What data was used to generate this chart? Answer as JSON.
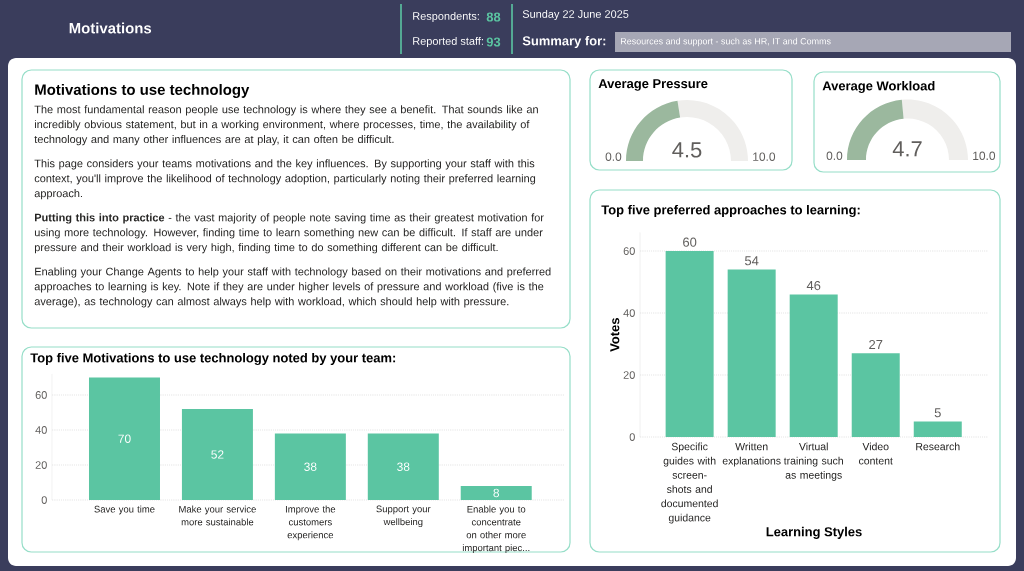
{
  "chart_data": [
    {
      "type": "other",
      "title": "Motivations",
      "annotations": [
        "Respondents:",
        "88",
        "Reported staff:",
        "93",
        "Sunday 22 June 2025",
        "Summary for:",
        "Resources and support - such as HR, IT and Comms"
      ]
    },
    {
      "type": "other",
      "title": "Motivations to use technology",
      "annotations": [
        "The most fundamental reason people use technology is where they see a benefit. That sounds like an incredibly obvious statement, but in a working environment, where processes, time, the availability of technology and many other influences are at play, it can often be difficult.",
        "This page considers your teams motivations and the key influences. By supporting your staff with this context, you'll improve the likelihood of technology adoption, particularly noting their preferred learning approach.",
        "**Putting this into practice** - the vast majority of people note saving time as their greatest motivation for using more technology. However, finding time to learn something new can be difficult. If staff are under pressure and their workload is very high, finding time to do something different can be difficult.",
        "Enabling your Change Agents to help your staff with technology based on their motivations and preferred approaches to learning is key. Note if they are under higher levels of pressure and workload (five is the average), as technology can almost always help with workload, which should help with pressure."
      ]
    },
    {
      "type": "other",
      "title": "Average Pressure",
      "values": [
        4.5
      ],
      "annotations": [
        "0.0",
        "10.0"
      ],
      "color": "#9bb89e",
      "data_labels": true
    },
    {
      "type": "other",
      "title": "Average Workload",
      "values": [
        4.7
      ],
      "annotations": [
        "0.0",
        "10.0"
      ],
      "color": "#9bb89e",
      "data_labels": true
    },
    {
      "type": "bar",
      "title": "Top five preferred approaches to learning:",
      "xlabel": "Learning Styles",
      "ylabel": "Votes",
      "categories": [
        "Specific guides with screen-shots and documented guidance",
        "Written explanations",
        "Virtual training such as meetings",
        "Video content",
        "Research"
      ],
      "values": [
        60,
        54,
        46,
        27,
        5
      ],
      "color": "#5bc5a2",
      "ylim": [
        0,
        66
      ],
      "yticks": [
        0,
        20,
        40,
        60
      ],
      "grid": "y",
      "data_labels": true
    },
    {
      "type": "bar",
      "title": "Top five Motivations to use technology noted by your team:",
      "categories": [
        "Save you time",
        "Make your service more sustainable",
        "Improve the customers experience",
        "Support your wellbeing",
        "Enable you to concentrate on other more important piec..."
      ],
      "values": [
        70,
        52,
        38,
        38,
        8
      ],
      "color": "#5bc5a2",
      "ylim": [
        0,
        72
      ],
      "yticks": [
        0,
        20,
        40,
        60
      ],
      "grid": "y",
      "data_labels": true
    }
  ]
}
